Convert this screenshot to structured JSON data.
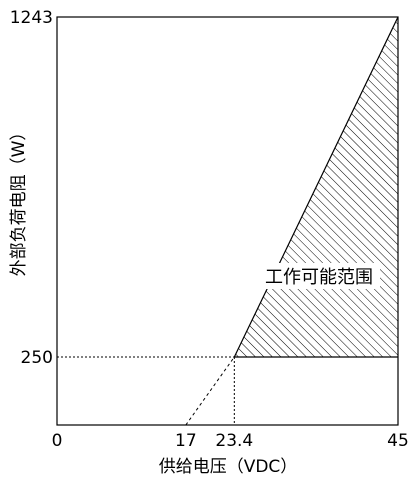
{
  "chart_data": {
    "type": "area",
    "title": "",
    "xlabel": "供给电压（VDC）",
    "ylabel": "外部负荷电阻（W）",
    "xlim": [
      0,
      45
    ],
    "ylim": [
      0,
      1243
    ],
    "x_ticks": [
      {
        "value": 0,
        "label": "0"
      },
      {
        "value": 17,
        "label": "17"
      },
      {
        "value": 23.4,
        "label": "23.4"
      },
      {
        "value": 45,
        "label": "45"
      }
    ],
    "y_ticks": [
      {
        "value": 250,
        "label": "250"
      },
      {
        "value": 1243,
        "label": "1243"
      }
    ],
    "region_label": "工作可能范围",
    "boundary_line": {
      "points": [
        {
          "x": 17,
          "y": 0
        },
        {
          "x": 23.4,
          "y": 250
        },
        {
          "x": 45,
          "y": 1243
        }
      ]
    },
    "operating_region": [
      {
        "x": 23.4,
        "y": 250
      },
      {
        "x": 45,
        "y": 250
      },
      {
        "x": 45,
        "y": 1243
      }
    ],
    "grid": false,
    "legend": "none"
  }
}
